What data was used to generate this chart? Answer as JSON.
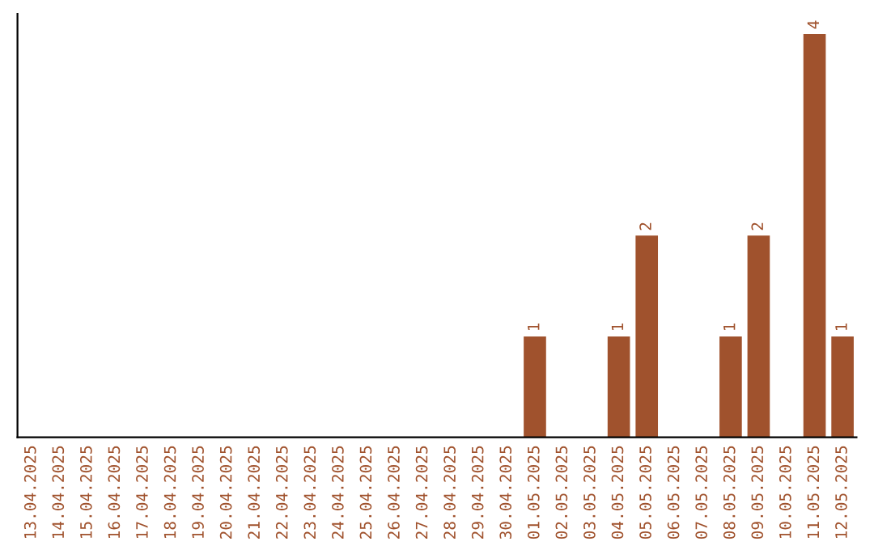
{
  "chart_data": {
    "type": "bar",
    "categories": [
      "13.04.2025",
      "14.04.2025",
      "15.04.2025",
      "16.04.2025",
      "17.04.2025",
      "18.04.2025",
      "19.04.2025",
      "20.04.2025",
      "21.04.2025",
      "22.04.2025",
      "23.04.2025",
      "24.04.2025",
      "25.04.2025",
      "26.04.2025",
      "27.04.2025",
      "28.04.2025",
      "29.04.2025",
      "30.04.2025",
      "01.05.2025",
      "02.05.2025",
      "03.05.2025",
      "04.05.2025",
      "05.05.2025",
      "06.05.2025",
      "07.05.2025",
      "08.05.2025",
      "09.05.2025",
      "10.05.2025",
      "11.05.2025",
      "12.05.2025"
    ],
    "values": [
      null,
      null,
      null,
      null,
      null,
      null,
      null,
      null,
      null,
      null,
      null,
      null,
      null,
      null,
      null,
      null,
      null,
      null,
      1,
      null,
      null,
      1,
      2,
      null,
      null,
      1,
      2,
      null,
      4,
      1
    ],
    "ylim": [
      0,
      4.2
    ],
    "value_labels": [
      null,
      null,
      null,
      null,
      null,
      null,
      null,
      null,
      null,
      null,
      null,
      null,
      null,
      null,
      null,
      null,
      null,
      null,
      "1",
      null,
      null,
      "1",
      "2",
      null,
      null,
      "1",
      "2",
      null,
      "4",
      "1"
    ],
    "color": "#a0522d",
    "tick_labels": "x",
    "grid": false,
    "legend": false
  }
}
